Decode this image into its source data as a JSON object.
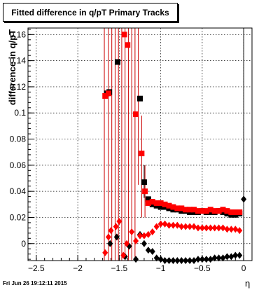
{
  "chart_data": {
    "type": "scatter",
    "title": "Fitted difference in q/pT  Primary Tracks",
    "ylabel": "difference in q/pT",
    "xlabel": "η",
    "xlim": [
      -2.6,
      0.1
    ],
    "ylim": [
      -0.013,
      0.165
    ],
    "xticks": [
      -2.5,
      -2,
      -1.5,
      -1,
      -0.5,
      0
    ],
    "xtick_labels": [
      "−2.5",
      "−2",
      "−1.5",
      "−1",
      "−0.5",
      "0"
    ],
    "yticks": [
      0,
      0.02,
      0.04,
      0.06,
      0.08,
      0.1,
      0.12,
      0.14,
      0.16
    ],
    "ytick_labels": [
      "0",
      "0.02",
      "0.04",
      "0.06",
      "0.08",
      "0.1",
      "0.12",
      "0.14",
      "0.16"
    ],
    "grid": true,
    "series": [
      {
        "color": "#000000",
        "marker": "square",
        "points": [
          [
            -1.65,
            0.115
          ],
          [
            -1.62,
            0.116
          ],
          [
            -1.52,
            0.139
          ],
          [
            -1.25,
            0.111
          ],
          [
            -1.2,
            0.047
          ],
          [
            -1.15,
            0.034
          ],
          [
            -1.1,
            0.03
          ],
          [
            -1.05,
            0.029
          ],
          [
            -1.0,
            0.028
          ],
          [
            -0.95,
            0.028
          ],
          [
            -0.9,
            0.027
          ],
          [
            -0.85,
            0.026
          ],
          [
            -0.8,
            0.026
          ],
          [
            -0.75,
            0.025
          ],
          [
            -0.7,
            0.025
          ],
          [
            -0.65,
            0.024
          ],
          [
            -0.6,
            0.024
          ],
          [
            -0.55,
            0.024
          ],
          [
            -0.5,
            0.025
          ],
          [
            -0.45,
            0.024
          ],
          [
            -0.4,
            0.024
          ],
          [
            -0.35,
            0.024
          ],
          [
            -0.3,
            0.025
          ],
          [
            -0.25,
            0.024
          ],
          [
            -0.2,
            0.023
          ],
          [
            -0.15,
            0.022
          ],
          [
            -0.1,
            0.022
          ],
          [
            -0.05,
            0.023
          ]
        ]
      },
      {
        "color": "#ff0000",
        "marker": "square",
        "points": [
          [
            -1.67,
            0.113
          ],
          [
            -1.63,
            0.115
          ],
          [
            -1.44,
            0.16
          ],
          [
            -1.4,
            0.152
          ],
          [
            -1.3,
            0.099
          ],
          [
            -1.23,
            0.069
          ],
          [
            -1.19,
            0.04
          ],
          [
            -1.15,
            0.031
          ],
          [
            -1.1,
            0.032
          ],
          [
            -1.05,
            0.031
          ],
          [
            -1.0,
            0.031
          ],
          [
            -0.95,
            0.03
          ],
          [
            -0.9,
            0.029
          ],
          [
            -0.85,
            0.028
          ],
          [
            -0.8,
            0.027
          ],
          [
            -0.75,
            0.027
          ],
          [
            -0.7,
            0.026
          ],
          [
            -0.65,
            0.026
          ],
          [
            -0.6,
            0.026
          ],
          [
            -0.55,
            0.025
          ],
          [
            -0.5,
            0.025
          ],
          [
            -0.45,
            0.025
          ],
          [
            -0.4,
            0.026
          ],
          [
            -0.35,
            0.025
          ],
          [
            -0.3,
            0.025
          ],
          [
            -0.25,
            0.026
          ],
          [
            -0.2,
            0.025
          ],
          [
            -0.15,
            0.024
          ],
          [
            -0.1,
            0.024
          ],
          [
            -0.05,
            0.024
          ]
        ]
      },
      {
        "color": "#000000",
        "marker": "diamond",
        "points": [
          [
            -1.61,
            0.0
          ],
          [
            -1.53,
            0.005
          ],
          [
            -1.43,
            -0.01
          ],
          [
            -1.38,
            -0.002
          ],
          [
            -1.3,
            -0.012
          ],
          [
            -1.25,
            0.007
          ],
          [
            -1.2,
            0.0
          ],
          [
            -1.15,
            -0.005
          ],
          [
            -1.1,
            -0.006
          ],
          [
            -1.05,
            -0.011
          ],
          [
            -1.0,
            -0.012
          ],
          [
            -0.95,
            -0.013
          ],
          [
            -0.9,
            -0.013
          ],
          [
            -0.85,
            -0.013
          ],
          [
            -0.8,
            -0.013
          ],
          [
            -0.75,
            -0.013
          ],
          [
            -0.7,
            -0.013
          ],
          [
            -0.65,
            -0.013
          ],
          [
            -0.6,
            -0.013
          ],
          [
            -0.55,
            -0.012
          ],
          [
            -0.5,
            -0.012
          ],
          [
            -0.45,
            -0.012
          ],
          [
            -0.4,
            -0.012
          ],
          [
            -0.35,
            -0.011
          ],
          [
            -0.3,
            -0.011
          ],
          [
            -0.25,
            -0.011
          ],
          [
            -0.2,
            -0.01
          ],
          [
            -0.15,
            -0.01
          ],
          [
            -0.1,
            -0.009
          ],
          [
            -0.05,
            -0.009
          ],
          [
            0.0,
            0.034
          ]
        ]
      },
      {
        "color": "#ff0000",
        "marker": "diamond",
        "points": [
          [
            -1.67,
            -0.007
          ],
          [
            -1.63,
            0.005
          ],
          [
            -1.6,
            0.01
          ],
          [
            -1.54,
            0.013
          ],
          [
            -1.5,
            0.017
          ],
          [
            -1.45,
            -0.009
          ],
          [
            -1.41,
            0.0
          ],
          [
            -1.35,
            0.009
          ],
          [
            -1.3,
            0.002
          ],
          [
            -1.25,
            0.006
          ],
          [
            -1.2,
            0.006
          ],
          [
            -1.15,
            0.007
          ],
          [
            -1.1,
            0.009
          ],
          [
            -1.05,
            0.013
          ],
          [
            -1.0,
            0.015
          ],
          [
            -0.95,
            0.015
          ],
          [
            -0.9,
            0.014
          ],
          [
            -0.85,
            0.014
          ],
          [
            -0.8,
            0.014
          ],
          [
            -0.75,
            0.013
          ],
          [
            -0.7,
            0.013
          ],
          [
            -0.65,
            0.013
          ],
          [
            -0.6,
            0.013
          ],
          [
            -0.55,
            0.012
          ],
          [
            -0.5,
            0.012
          ],
          [
            -0.45,
            0.012
          ],
          [
            -0.4,
            0.012
          ],
          [
            -0.35,
            0.012
          ],
          [
            -0.3,
            0.012
          ],
          [
            -0.25,
            0.012
          ],
          [
            -0.2,
            0.011
          ],
          [
            -0.15,
            0.011
          ],
          [
            -0.1,
            0.011
          ],
          [
            -0.05,
            0.01
          ]
        ]
      }
    ],
    "error_bars": [
      {
        "x": -1.68,
        "color": "#cc0000",
        "ylow": -0.013,
        "yhigh": 0.165
      },
      {
        "x": -1.63,
        "color": "#cc0000",
        "ylow": -0.013,
        "yhigh": 0.165
      },
      {
        "x": -1.59,
        "color": "#cc0000",
        "ylow": -0.013,
        "yhigh": 0.165
      },
      {
        "x": -1.55,
        "color": "#cc0000",
        "ylow": -0.013,
        "yhigh": 0.165
      },
      {
        "x": -1.51,
        "color": "#cc0000",
        "ylow": -0.013,
        "yhigh": 0.165
      },
      {
        "x": -1.47,
        "color": "#cc0000",
        "ylow": -0.013,
        "yhigh": 0.165
      },
      {
        "x": -1.43,
        "color": "#cc0000",
        "ylow": -0.013,
        "yhigh": 0.165
      },
      {
        "x": -1.39,
        "color": "#cc0000",
        "ylow": -0.013,
        "yhigh": 0.165
      },
      {
        "x": -1.35,
        "color": "#cc0000",
        "ylow": -0.013,
        "yhigh": 0.165
      },
      {
        "x": -1.31,
        "color": "#cc0000",
        "ylow": -0.013,
        "yhigh": 0.165
      },
      {
        "x": -1.27,
        "color": "#cc0000",
        "ylow": 0.045,
        "yhigh": 0.165
      },
      {
        "x": -1.23,
        "color": "#cc0000",
        "ylow": 0.02,
        "yhigh": 0.098
      },
      {
        "x": -1.19,
        "color": "#cc0000",
        "ylow": 0.02,
        "yhigh": 0.06
      },
      {
        "x": -1.2,
        "color": "#000000",
        "ylow": 0.035,
        "yhigh": 0.06
      },
      {
        "x": -0.0,
        "color": "#000000",
        "ylow": -0.013,
        "yhigh": 0.165
      }
    ],
    "footer": {
      "datestamp": "Fri Jun 26 19:12:11 2015"
    }
  },
  "colors": {
    "frame": "#000000",
    "grid": "#000000",
    "red": "#ff0000",
    "black": "#000000"
  }
}
